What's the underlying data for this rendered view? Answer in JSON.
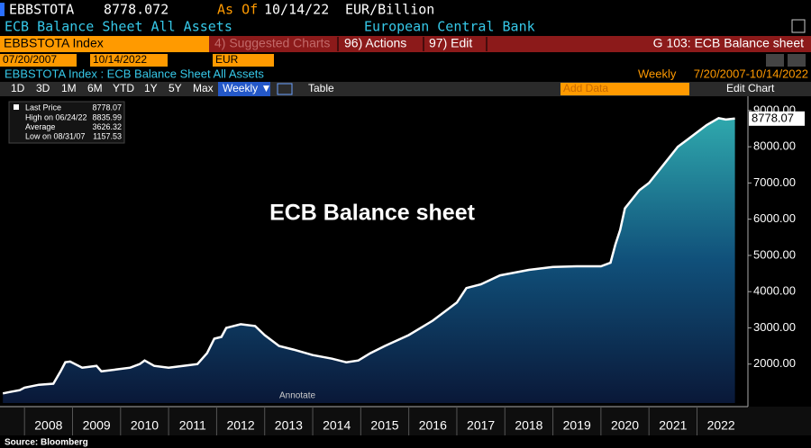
{
  "header": {
    "ticker": "EBBSTOTA",
    "price": 8778.072,
    "as_of_label": "As Of",
    "as_of": "10/14/22",
    "units": "EUR/Billion",
    "description": "ECB Balance Sheet All Assets",
    "source_name": "European Central Bank"
  },
  "toolbar": {
    "security": "EBBSTOTA Index",
    "suggested": "4) Suggested Charts",
    "actions": "96) Actions",
    "edit": "97) Edit",
    "page": "G 103: ECB Balance sheet",
    "start_date": "07/20/2007",
    "end_date": "10/14/2022",
    "currency": "EUR",
    "chart_subtitle": "EBBSTOTA Index : ECB Balance Sheet All Assets",
    "frequency": "Weekly",
    "range": "7/20/2007-10/14/2022",
    "periods": [
      "1D",
      "3D",
      "1M",
      "6M",
      "YTD",
      "1Y",
      "5Y",
      "Max"
    ],
    "frequency_menu": "Weekly ▼",
    "table": "Table",
    "add_data": "Add Data",
    "edit_chart": "Edit Chart"
  },
  "chart_data": {
    "type": "area",
    "title": "ECB Balance sheet",
    "x": [
      2007.55,
      2007.7,
      2007.9,
      2008.0,
      2008.3,
      2008.6,
      2008.75,
      2008.85,
      2008.95,
      2009.2,
      2009.5,
      2009.6,
      2009.9,
      2010.2,
      2010.4,
      2010.5,
      2010.7,
      2011.0,
      2011.3,
      2011.6,
      2011.8,
      2011.95,
      2012.1,
      2012.2,
      2012.5,
      2012.8,
      2013.0,
      2013.3,
      2013.6,
      2014.0,
      2014.4,
      2014.7,
      2014.95,
      2015.2,
      2015.5,
      2016.0,
      2016.5,
      2017.0,
      2017.2,
      2017.5,
      2017.9,
      2018.5,
      2019.0,
      2019.5,
      2020.0,
      2020.2,
      2020.3,
      2020.4,
      2020.5,
      2020.8,
      2021.0,
      2021.3,
      2021.6,
      2021.9,
      2022.2,
      2022.45,
      2022.6,
      2022.79
    ],
    "series": [
      {
        "name": "Last Price",
        "color": "#ffffff",
        "values": [
          1190,
          1230,
          1280,
          1350,
          1430,
          1460,
          1800,
          2050,
          2070,
          1900,
          1950,
          1800,
          1850,
          1900,
          2000,
          2100,
          1950,
          1900,
          1950,
          2000,
          2300,
          2700,
          2750,
          3000,
          3100,
          3050,
          2800,
          2500,
          2400,
          2250,
          2150,
          2050,
          2100,
          2300,
          2500,
          2800,
          3200,
          3700,
          4100,
          4200,
          4450,
          4600,
          4680,
          4700,
          4700,
          4800,
          5300,
          5700,
          6300,
          6800,
          7000,
          7500,
          8000,
          8300,
          8600,
          8790,
          8750,
          8778.07
        ]
      }
    ],
    "xlim": [
      2007.49,
      2023.06
    ],
    "xticks": [
      2008,
      2009,
      2010,
      2011,
      2012,
      2013,
      2014,
      2015,
      2016,
      2017,
      2018,
      2019,
      2020,
      2021,
      2022
    ],
    "ylim": [
      925,
      9320
    ],
    "yticks": [
      {
        "value": 2000,
        "label": "2000.00"
      },
      {
        "value": 3000,
        "label": "3000.00"
      },
      {
        "value": 4000,
        "label": "4000.00"
      },
      {
        "value": 5000,
        "label": "5000.00"
      },
      {
        "value": 6000,
        "label": "6000.00"
      },
      {
        "value": 7000,
        "label": "7000.00"
      },
      {
        "value": 8000,
        "label": "8000.00"
      },
      {
        "value": 9000,
        "label": "9000.00"
      }
    ],
    "stats": [
      {
        "label": "High on 06/24/22",
        "value": 8835.99
      },
      {
        "label": "Average",
        "value": 3626.32
      },
      {
        "label": "Low on 08/31/07",
        "value": 1157.53
      }
    ],
    "annotate": "Annotate",
    "source": "Source: Bloomberg"
  }
}
